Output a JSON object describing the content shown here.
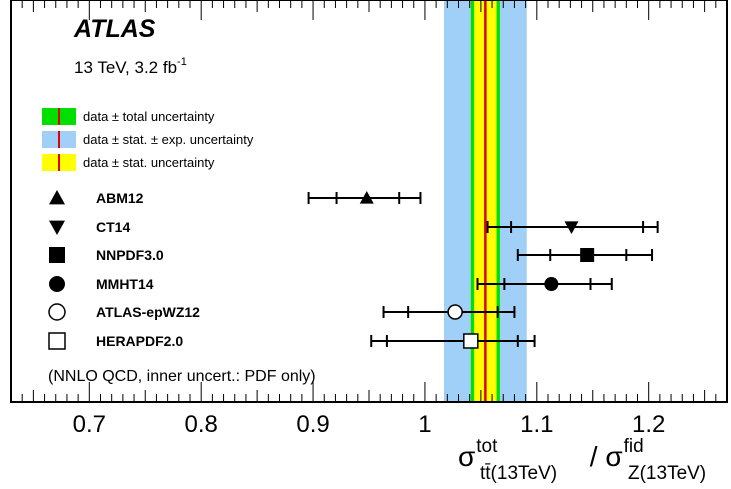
{
  "chart_data": {
    "type": "scatter",
    "title": "ATLAS",
    "subtitle": "13 TeV, 3.2 fb",
    "subtitle_sup": "-1",
    "xlim": [
      0.63,
      1.27
    ],
    "xticks": [
      {
        "value": 0.7,
        "label": "0.7"
      },
      {
        "value": 0.8,
        "label": "0.8"
      },
      {
        "value": 0.9,
        "label": "0.9"
      },
      {
        "value": 1.0,
        "label": "1"
      },
      {
        "value": 1.1,
        "label": "1.1"
      },
      {
        "value": 1.2,
        "label": "1.2"
      }
    ],
    "xlabel": {
      "num_sym": "σ",
      "num_sup": "tot",
      "num_sub": "tt̄(13TeV)",
      "slash": " / ",
      "den_sym": "σ",
      "den_sup": "fid",
      "den_sub": "Z(13TeV)"
    },
    "measurement": {
      "central": 1.054,
      "total_band": [
        1.041,
        1.067
      ],
      "stat_exp_band": [
        1.017,
        1.091
      ],
      "stat_band": [
        1.044,
        1.064
      ],
      "colors": {
        "total": "#00e000",
        "stat_exp": "#a0d0f8",
        "stat": "#ffff00",
        "line": "#e00000"
      }
    },
    "legend": [
      {
        "key": "total",
        "label": "data ± total uncertainty"
      },
      {
        "key": "stat_exp",
        "label": "data ± stat. ± exp. uncertainty"
      },
      {
        "key": "stat",
        "label": "data ± stat. uncertainty"
      }
    ],
    "series": [
      {
        "name": "ABM12",
        "marker": "triangle-up",
        "value": 0.948,
        "inner": [
          0.921,
          0.977
        ],
        "outer": [
          0.896,
          0.996
        ]
      },
      {
        "name": "CT14",
        "marker": "triangle-down",
        "value": 1.131,
        "inner": [
          1.077,
          1.195
        ],
        "outer": [
          1.056,
          1.208
        ]
      },
      {
        "name": "NNPDF3.0",
        "marker": "square-filled",
        "value": 1.145,
        "inner": [
          1.112,
          1.18
        ],
        "outer": [
          1.083,
          1.203
        ]
      },
      {
        "name": "MMHT14",
        "marker": "circle-filled",
        "value": 1.113,
        "inner": [
          1.071,
          1.148
        ],
        "outer": [
          1.047,
          1.167
        ]
      },
      {
        "name": "ATLAS-epWZ12",
        "marker": "circle-open",
        "value": 1.027,
        "inner": [
          0.985,
          1.065
        ],
        "outer": [
          0.963,
          1.08
        ]
      },
      {
        "name": "HERAPDF2.0",
        "marker": "square-open",
        "value": 1.041,
        "inner": [
          0.966,
          1.083
        ],
        "outer": [
          0.952,
          1.098
        ]
      }
    ],
    "note": "(NNLO QCD, inner uncert.: PDF only)"
  }
}
